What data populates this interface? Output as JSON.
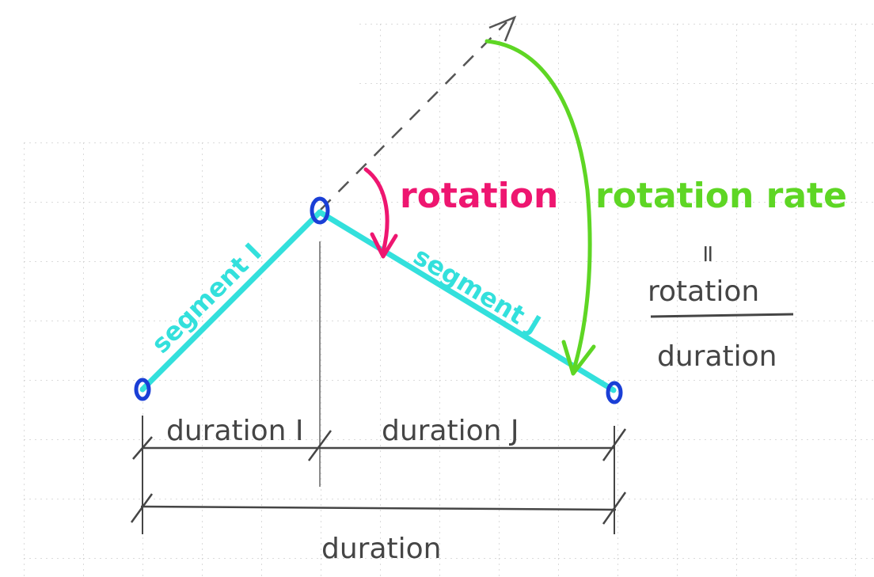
{
  "labels": {
    "segment_i": "segment I",
    "segment_j": "segment J",
    "rotation": "rotation",
    "rotation_rate": "rotation rate",
    "equals": "=",
    "fraction_numerator": "rotation",
    "fraction_denominator": "duration",
    "duration_i": "duration I",
    "duration_j": "duration J",
    "duration_total": "duration"
  },
  "colors": {
    "segment": "#33e0dc",
    "node": "#1a3fd6",
    "rotation": "#ee1670",
    "rotation_rate": "#5ed624",
    "ink": "#454545",
    "grid": "#d2d2d2"
  }
}
